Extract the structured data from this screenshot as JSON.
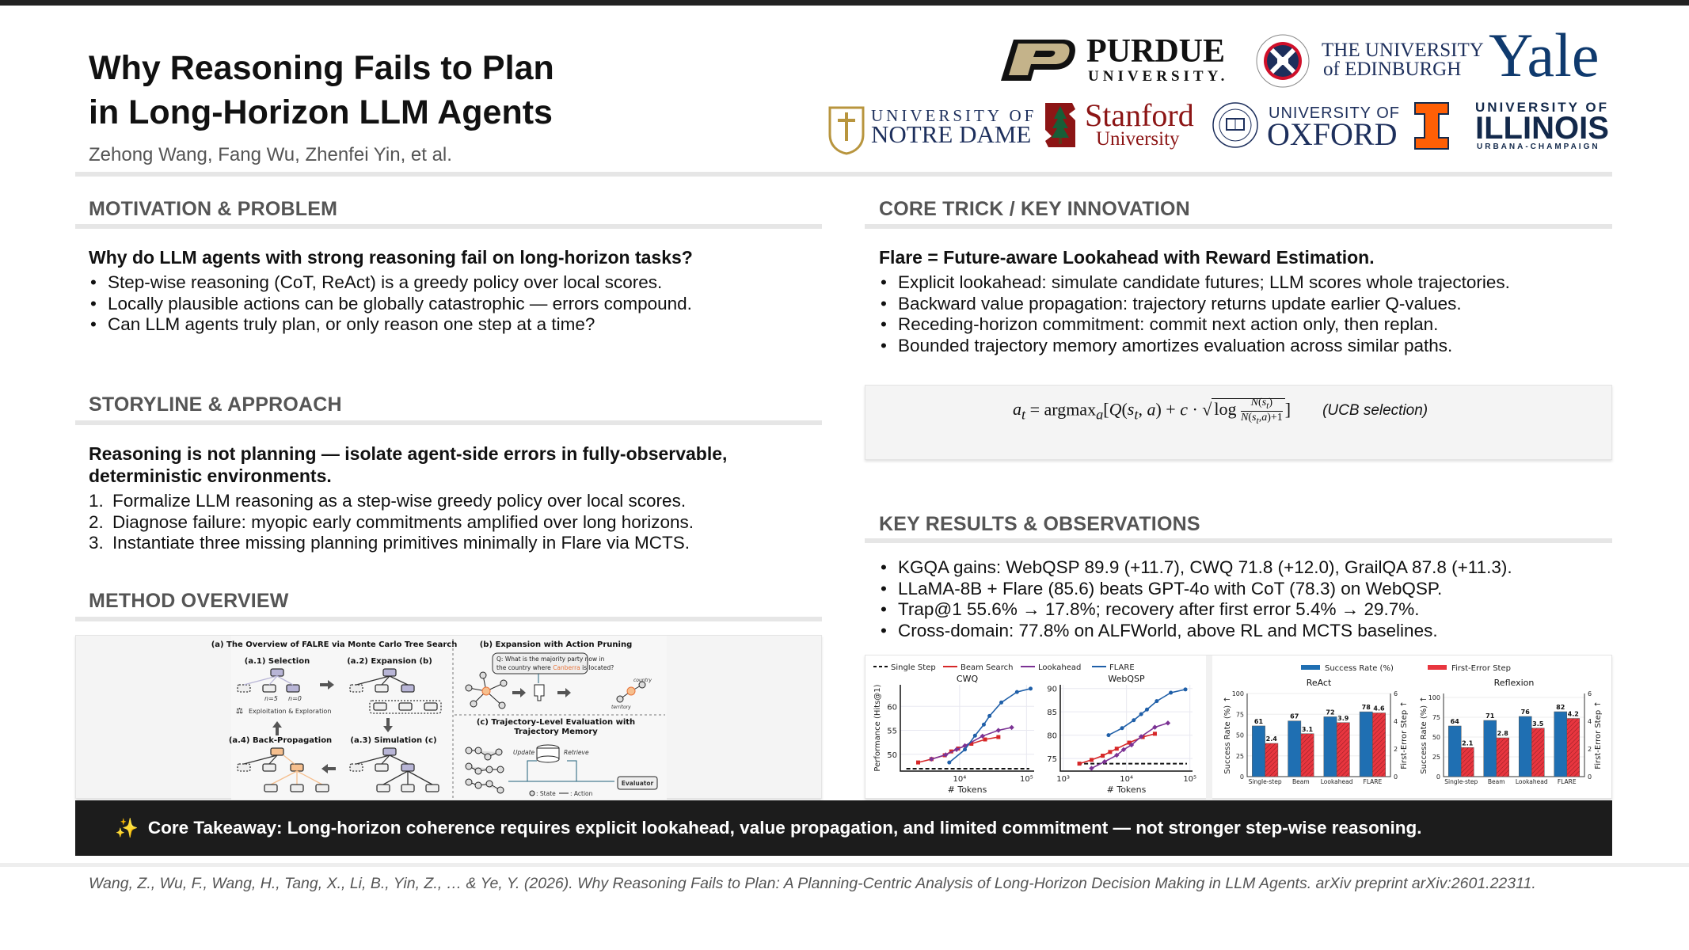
{
  "title_lines": [
    "Why Reasoning Fails to Plan",
    "in Long-Horizon LLM Agents"
  ],
  "authors": "Zehong Wang, Fang Wu, Zhenfei Yin, et al.",
  "logos": {
    "purdue": [
      "PURDUE",
      "UNIVERSITY."
    ],
    "edinburgh": [
      "THE UNIVERSITY",
      "of EDINBURGH"
    ],
    "yale": "Yale",
    "notre_dame": [
      "UNIVERSITY OF",
      "NOTRE DAME"
    ],
    "stanford": [
      "Stanford",
      "University"
    ],
    "oxford": [
      "UNIVERSITY OF",
      "OXFORD"
    ],
    "illinois": [
      "UNIVERSITY OF",
      "ILLINOIS",
      "URBANA-CHAMPAIGN"
    ],
    "colors": {
      "purdue_gold": "#c4b38a",
      "edinburgh_red": "#d0102a",
      "yale_blue": "#0f3a6e",
      "notre_dame_gold": "#b8953e",
      "stanford_red": "#8c1515",
      "oxford_blue": "#1d2f5c",
      "illinois_orange": "#ff5f05",
      "illinois_blue": "#13294b"
    }
  },
  "motivation": {
    "header": "MOTIVATION & PROBLEM",
    "lead": "Why do LLM agents with strong reasoning fail on long-horizon tasks?",
    "bullets": [
      "Step-wise reasoning (CoT, ReAct) is a greedy policy over local scores.",
      "Locally plausible actions can be globally catastrophic — errors compound.",
      "Can LLM agents truly plan, or only reason one step at a time?"
    ]
  },
  "storyline": {
    "header": "STORYLINE & APPROACH",
    "lead": "Reasoning is not planning — isolate agent-side errors in fully-observable, deterministic environments.",
    "steps": [
      {
        "n": "1.",
        "t": "Formalize LLM reasoning as a step-wise greedy policy over local scores."
      },
      {
        "n": "2.",
        "t": "Diagnose failure: myopic early commitments amplified over long horizons."
      },
      {
        "n": "3.",
        "t": "Instantiate three missing planning primitives minimally in Flare via MCTS."
      }
    ]
  },
  "method": {
    "header": "METHOD OVERVIEW",
    "figure": {
      "a_title": "(a) The Overview of FALRE via Monte Carlo Tree Search",
      "a1": "(a.1) Selection",
      "a2": "(a.2) Expansion (b)",
      "a3": "(a.3) Simulation (c)",
      "a4": "(a.4) Back-Propagation",
      "n5": "n=5",
      "n0": "n=0",
      "explore": "Exploitation & Exploration",
      "b_title": "(b) Expansion with Action Pruning",
      "question_1": "Q: What is the majority party now in",
      "question_2a": "the country where ",
      "question_entity": "Canberra",
      "question_2b": " is located?",
      "edge_1": "country",
      "edge_2": "territory",
      "c_title_1": "(c) Trajectory-Level Evaluation with",
      "c_title_2": "Trajectory Memory",
      "update": "Update",
      "retrieve": "Retrieve",
      "evaluator": "Evaluator",
      "state": ": State",
      "action": ": Action"
    }
  },
  "core": {
    "header": "CORE TRICK / KEY INNOVATION",
    "lead": "Flare = Future-aware Lookahead with Reward Estimation.",
    "bullets": [
      "Explicit lookahead: simulate candidate futures; LLM scores whole trajectories.",
      "Backward value propagation: trajectory returns update earlier Q-values.",
      "Receding-horizon commitment: commit next action only, then replan.",
      "Bounded trajectory memory amortizes evaluation across similar paths."
    ],
    "formula_note": "(UCB selection)"
  },
  "results": {
    "header": "KEY RESULTS & OBSERVATIONS",
    "bullets": [
      "KGQA gains: WebQSP 89.9 (+11.7), CWQ 71.8 (+12.0), GrailQA 87.8 (+11.3).",
      "LLaMA-8B + Flare (85.6) beats GPT-4o with CoT (78.3) on WebQSP.",
      "Trap@1 55.6% → 17.8%; recovery after first error 5.4% → 29.7%.",
      "Cross-domain: 77.8% on ALFWorld, above RL and MCTS baselines."
    ]
  },
  "takeaway": {
    "icon": "sparkles-icon",
    "text": "Core Takeaway: Long-horizon coherence requires explicit lookahead, value propagation, and limited commitment — not stronger step-wise reasoning."
  },
  "citation": "Wang, Z., Wu, F., Wang, H., Tang, X., Li, B., Yin, Z., … & Ye, Y. (2026). Why Reasoning Fails to Plan: A Planning-Centric Analysis of Long-Horizon Decision Making in LLM Agents. arXiv preprint arXiv:2601.22311.",
  "chart_data": [
    {
      "type": "line",
      "title": "CWQ",
      "xlabel": "# Tokens",
      "ylabel": "Performance (Hits@1)",
      "xscale": "log",
      "xlim": [
        1300,
        130000
      ],
      "ylim": [
        46.5,
        64.5
      ],
      "xticks": [
        10000,
        100000
      ],
      "xtick_labels": [
        "10⁴",
        "10⁵"
      ],
      "yticks": [
        50,
        55,
        60
      ],
      "grid": true,
      "legend": "top",
      "series": [
        {
          "name": "Single Step",
          "style": "dashed",
          "color": "#111111",
          "x": [
            1600,
            110000
          ],
          "y": [
            47,
            47
          ]
        },
        {
          "name": "Beam Search",
          "color": "#d62728",
          "marker": "square",
          "x": [
            2400,
            3800,
            6000,
            7500,
            9500,
            15000,
            24000,
            38000
          ],
          "y": [
            48.3,
            49,
            49.8,
            50.6,
            51.2,
            52.2,
            53.1,
            53.6
          ]
        },
        {
          "name": "Lookahead",
          "color": "#7b3294",
          "marker": "diamond",
          "x": [
            3800,
            6200,
            9000,
            12000,
            22000,
            38000,
            60000
          ],
          "y": [
            49,
            49.9,
            51,
            51.8,
            53.8,
            55,
            55.6
          ]
        },
        {
          "name": "FLARE",
          "color": "#1f5fa8",
          "marker": "circle",
          "x": [
            7000,
            12000,
            17000,
            23000,
            28000,
            42000,
            72000,
            115000
          ],
          "y": [
            48.3,
            51,
            53.9,
            56.2,
            58,
            60.8,
            63,
            63.7
          ]
        }
      ]
    },
    {
      "type": "line",
      "title": "WebQSP",
      "xlabel": "# Tokens",
      "xscale": "log",
      "xlim": [
        900,
        110000
      ],
      "ylim": [
        72.3,
        90.8
      ],
      "xticks": [
        1000,
        10000,
        100000
      ],
      "xtick_labels": [
        "10³",
        "10⁴",
        "10⁵"
      ],
      "yticks": [
        75,
        80,
        85,
        90
      ],
      "grid": true,
      "series": [
        {
          "name": "Single Step",
          "style": "dashed",
          "color": "#111111",
          "x": [
            1700,
            90000
          ],
          "y": [
            73.9,
            73.9
          ]
        },
        {
          "name": "Beam Search",
          "color": "#d62728",
          "marker": "square",
          "x": [
            1800,
            2800,
            4200,
            5500,
            7000,
            11000,
            18000,
            28000
          ],
          "y": [
            73.9,
            74.7,
            75.6,
            76.4,
            77.1,
            78.4,
            79.6,
            80.3
          ]
        },
        {
          "name": "Lookahead",
          "color": "#7b3294",
          "marker": "diamond",
          "x": [
            2800,
            4500,
            7000,
            9000,
            12000,
            17000,
            28000,
            45000
          ],
          "y": [
            72.9,
            74.3,
            75.7,
            76.9,
            77.9,
            79.7,
            81.7,
            82.6
          ]
        },
        {
          "name": "FLARE",
          "color": "#1f5fa8",
          "marker": "circle",
          "x": [
            5200,
            8500,
            13000,
            17000,
            21000,
            30000,
            50000,
            85000
          ],
          "y": [
            80,
            81.5,
            83.2,
            84.5,
            85.5,
            87.3,
            89.1,
            89.8
          ]
        }
      ]
    },
    {
      "type": "bar",
      "title": "ReAct",
      "categories": [
        "Single-step",
        "Beam",
        "Lookahead",
        "FLARE"
      ],
      "ylabel": "Success Rate (%) ↑",
      "y2label": "First-Error Step ↑",
      "ylim": [
        0,
        100
      ],
      "y2lim": [
        0,
        6
      ],
      "yticks": [
        0,
        25,
        50,
        75,
        100
      ],
      "y2ticks": [
        0,
        2,
        4,
        6
      ],
      "legend": "top",
      "series": [
        {
          "name": "Success Rate (%)",
          "color": "#1f6fb2",
          "values": [
            61,
            67,
            72,
            78
          ]
        },
        {
          "name": "First-Error Step",
          "color": "#e8363f",
          "hatch": true,
          "values": [
            2.4,
            3.1,
            3.9,
            4.6
          ]
        }
      ]
    },
    {
      "type": "bar",
      "title": "Reflexion",
      "categories": [
        "Single-step",
        "Beam",
        "Lookahead",
        "FLARE"
      ],
      "ylabel": "Success Rate (%) ↑",
      "y2label": "First-Error Step ↑",
      "ylim": [
        0,
        105
      ],
      "y2lim": [
        0,
        6
      ],
      "yticks": [
        0,
        25,
        50,
        75,
        100
      ],
      "y2ticks": [
        0,
        2,
        4,
        6
      ],
      "series": [
        {
          "name": "Success Rate (%)",
          "color": "#1f6fb2",
          "values": [
            64,
            71,
            76,
            82
          ]
        },
        {
          "name": "First-Error Step",
          "color": "#e8363f",
          "hatch": true,
          "values": [
            2.1,
            2.8,
            3.5,
            4.2
          ]
        }
      ]
    }
  ]
}
